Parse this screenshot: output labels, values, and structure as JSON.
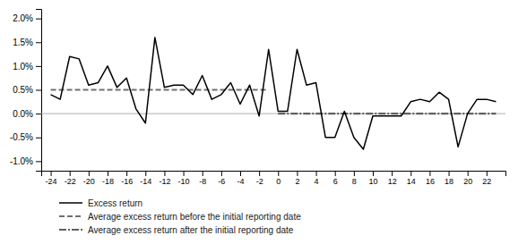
{
  "chart_data": {
    "type": "line",
    "x": [
      -24,
      -23,
      -22,
      -21,
      -20,
      -19,
      -18,
      -17,
      -16,
      -15,
      -14,
      -13,
      -12,
      -11,
      -10,
      -9,
      -8,
      -7,
      -6,
      -5,
      -4,
      -3,
      -2,
      -1,
      0,
      1,
      2,
      3,
      4,
      5,
      6,
      7,
      8,
      9,
      10,
      11,
      12,
      13,
      14,
      15,
      16,
      17,
      18,
      19,
      20,
      21,
      22,
      23
    ],
    "series": [
      {
        "name": "Excess return",
        "color": "#000000",
        "line_style": "solid",
        "values": [
          0.004,
          0.003,
          0.012,
          0.0115,
          0.006,
          0.0065,
          0.01,
          0.0055,
          0.0075,
          0.001,
          -0.002,
          0.016,
          0.0055,
          0.006,
          0.006,
          0.004,
          0.008,
          0.003,
          0.004,
          0.0065,
          0.002,
          0.006,
          -0.0005,
          0.0135,
          0.0005,
          0.0005,
          0.0135,
          0.006,
          0.0065,
          -0.005,
          -0.005,
          0.0005,
          -0.005,
          -0.0075,
          -0.0005,
          -0.0005,
          -0.0005,
          -0.0005,
          0.0025,
          0.003,
          0.0025,
          0.0045,
          0.003,
          -0.007,
          0.0,
          0.003,
          0.003,
          0.0025
        ]
      },
      {
        "name": "Average excess return before the initial reporting date",
        "color": "#707070",
        "line_style": "dashed",
        "x": [
          -24,
          -1
        ],
        "values": [
          0.005,
          0.005
        ]
      },
      {
        "name": "Average excess return after the initial reporting date",
        "color": "#606060",
        "line_style": "dashdot",
        "x": [
          0,
          23
        ],
        "values": [
          0.0,
          0.0
        ]
      }
    ],
    "hlines": [
      {
        "y": 0,
        "color": "#b0b0b0"
      }
    ],
    "xlim": [
      -25,
      24
    ],
    "xticks": [
      -24,
      -22,
      -20,
      -18,
      -16,
      -14,
      -12,
      -10,
      -8,
      -6,
      -4,
      -2,
      0,
      2,
      4,
      6,
      8,
      10,
      12,
      14,
      16,
      18,
      20,
      22
    ],
    "ylim": [
      -0.012,
      0.022
    ],
    "yticks": [
      {
        "value": -0.01,
        "label": "-1.0%"
      },
      {
        "value": -0.005,
        "label": "-0.5%"
      },
      {
        "value": 0.0,
        "label": "0.0%"
      },
      {
        "value": 0.005,
        "label": "0.5%"
      },
      {
        "value": 0.01,
        "label": "1.0%"
      },
      {
        "value": 0.015,
        "label": "1.5%"
      },
      {
        "value": 0.02,
        "label": "2.0%"
      }
    ],
    "grid": false,
    "legend": "bottom"
  }
}
